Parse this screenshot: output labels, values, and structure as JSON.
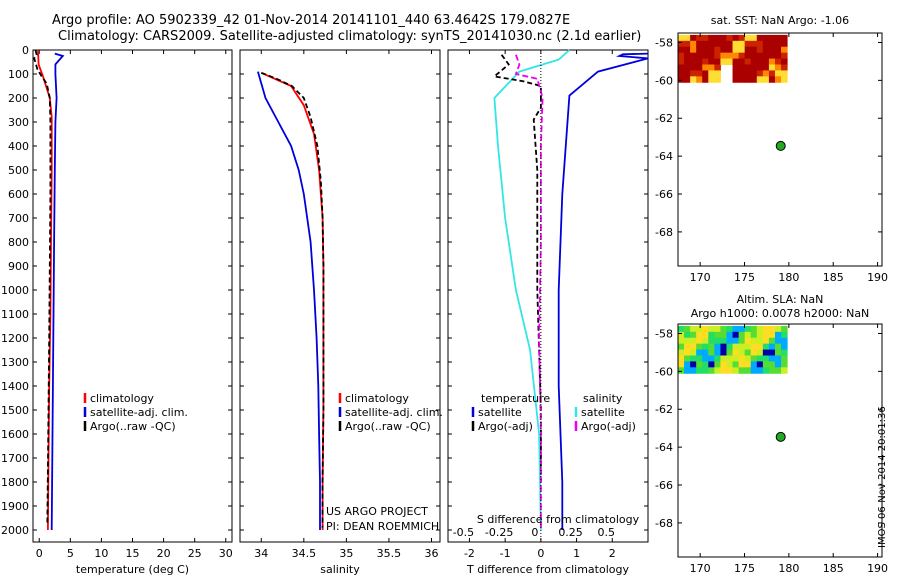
{
  "header": {
    "line1": "Argo profile: AO 5902339_42 01-Nov-2014 20141101_440 63.4642S 179.0827E",
    "line2": "Climatology: CARS2009. Satellite-adjusted climatology: synTS_20141030.nc (2.1d earlier)"
  },
  "footer_stamp": "IMOS 06-Nov-2014 20:01:36",
  "colors": {
    "red": "#ff0000",
    "blue": "#0000dd",
    "black": "#000000",
    "cyan": "#33e6e6",
    "magenta": "#ee00ee",
    "gray": "#555555"
  },
  "chart_data": [
    {
      "type": "line",
      "name": "temperature-profile",
      "xlabel": "temperature (deg C)",
      "xlim": [
        -1,
        31
      ],
      "ylim": [
        2050,
        0
      ],
      "xticks": [
        0,
        5,
        10,
        15,
        20,
        25,
        30
      ],
      "yticks": [
        0,
        100,
        200,
        300,
        400,
        500,
        600,
        700,
        800,
        900,
        1000,
        1100,
        1200,
        1300,
        1400,
        1500,
        1600,
        1700,
        1800,
        1900,
        2000
      ],
      "series": [
        {
          "name": "satellite-adj. clim.",
          "color": "blue",
          "dash": "",
          "points": [
            [
              2.5,
              15
            ],
            [
              3.8,
              25
            ],
            [
              2.6,
              60
            ],
            [
              2.6,
              100
            ],
            [
              2.8,
              200
            ],
            [
              2.6,
              300
            ],
            [
              2.5,
              500
            ],
            [
              2.4,
              800
            ],
            [
              2.3,
              1100
            ],
            [
              2.2,
              1400
            ],
            [
              2.1,
              1700
            ],
            [
              2.0,
              2000
            ]
          ]
        },
        {
          "name": "climatology",
          "color": "red",
          "dash": "",
          "points": [
            [
              -0.2,
              0
            ],
            [
              -0.1,
              60
            ],
            [
              0.6,
              110
            ],
            [
              1.7,
              200
            ],
            [
              2.0,
              280
            ],
            [
              2.0,
              500
            ],
            [
              1.9,
              800
            ],
            [
              1.8,
              1100
            ],
            [
              1.6,
              1400
            ],
            [
              1.5,
              1700
            ],
            [
              1.4,
              2000
            ]
          ]
        },
        {
          "name": "Argo(..raw -QC)",
          "color": "black",
          "dash": "5,3",
          "points": [
            [
              -0.6,
              0
            ],
            [
              -0.4,
              20
            ],
            [
              -0.8,
              35
            ],
            [
              -0.3,
              80
            ],
            [
              0.4,
              110
            ],
            [
              1.2,
              140
            ],
            [
              1.7,
              200
            ],
            [
              1.8,
              300
            ],
            [
              1.8,
              600
            ],
            [
              1.7,
              900
            ],
            [
              1.6,
              1200
            ],
            [
              1.5,
              1500
            ],
            [
              1.4,
              1750
            ],
            [
              1.3,
              1980
            ]
          ]
        }
      ],
      "legend": [
        "climatology",
        "satellite-adj. clim.",
        "Argo(..raw -QC)"
      ]
    },
    {
      "type": "line",
      "name": "salinity-profile",
      "xlabel": "salinity",
      "xlim": [
        33.75,
        36.1
      ],
      "ylim": [
        2050,
        0
      ],
      "xticks": [
        34,
        34.5,
        35,
        35.5,
        36
      ],
      "xticklabels": [
        "34",
        "34.5",
        "35",
        "35.5",
        "36"
      ],
      "series": [
        {
          "name": "satellite-adj. clim.",
          "color": "blue",
          "dash": "",
          "points": [
            [
              33.96,
              90
            ],
            [
              34.05,
              200
            ],
            [
              34.2,
              300
            ],
            [
              34.35,
              400
            ],
            [
              34.44,
              500
            ],
            [
              34.5,
              600
            ],
            [
              34.54,
              700
            ],
            [
              34.58,
              800
            ],
            [
              34.62,
              1000
            ],
            [
              34.65,
              1200
            ],
            [
              34.67,
              1400
            ],
            [
              34.68,
              1600
            ],
            [
              34.69,
              1800
            ],
            [
              34.69,
              2000
            ]
          ]
        },
        {
          "name": "climatology",
          "color": "red",
          "dash": "",
          "points": [
            [
              34.0,
              95
            ],
            [
              34.35,
              150
            ],
            [
              34.5,
              230
            ],
            [
              34.62,
              350
            ],
            [
              34.68,
              500
            ],
            [
              34.72,
              700
            ],
            [
              34.73,
              900
            ],
            [
              34.73,
              1200
            ],
            [
              34.73,
              1500
            ],
            [
              34.72,
              1800
            ],
            [
              34.72,
              2000
            ]
          ]
        },
        {
          "name": "Argo(..raw -QC)",
          "color": "black",
          "dash": "5,3",
          "points": [
            [
              34.0,
              95
            ],
            [
              34.18,
              120
            ],
            [
              34.36,
              150
            ],
            [
              34.5,
              200
            ],
            [
              34.58,
              280
            ],
            [
              34.66,
              400
            ],
            [
              34.7,
              550
            ],
            [
              34.72,
              700
            ],
            [
              34.73,
              900
            ],
            [
              34.73,
              1200
            ],
            [
              34.73,
              1500
            ],
            [
              34.72,
              1800
            ],
            [
              34.72,
              1990
            ]
          ]
        }
      ],
      "legend": [
        "climatology",
        "satellite-adj. clim.",
        "Argo(..raw -QC)"
      ],
      "annotation": [
        "US ARGO PROJECT",
        "PI: DEAN ROEMMICH"
      ]
    },
    {
      "type": "line",
      "name": "difference-profile",
      "xlabel": "T difference from climatology",
      "xlabel2": "S difference from climatology",
      "xlim": [
        -2.6,
        3.0
      ],
      "ylim": [
        2050,
        0
      ],
      "xticks": [
        -2,
        -1,
        0,
        1,
        2
      ],
      "xticklabels": [
        "-2",
        "-1",
        "0",
        "1",
        "2"
      ],
      "s_ticklabels": [
        "-0.5",
        "-0.25",
        "0",
        "0.25",
        "0.5"
      ],
      "series": [
        {
          "name": "temperature satellite",
          "color": "blue",
          "dash": "",
          "points": [
            [
              3.0,
              15
            ],
            [
              2.3,
              18
            ],
            [
              2.2,
              25
            ],
            [
              3.0,
              35
            ],
            [
              1.6,
              90
            ],
            [
              0.8,
              190
            ],
            [
              0.6,
              600
            ],
            [
              0.5,
              1000
            ],
            [
              0.5,
              1400
            ],
            [
              0.6,
              1800
            ],
            [
              0.6,
              2000
            ]
          ]
        },
        {
          "name": "salinity satellite",
          "color": "cyan",
          "dash": "",
          "points": [
            [
              0.8,
              0
            ],
            [
              0.5,
              40
            ],
            [
              -0.6,
              90
            ],
            [
              -1.3,
              200
            ],
            [
              -1.2,
              400
            ],
            [
              -1.0,
              700
            ],
            [
              -0.7,
              1000
            ],
            [
              -0.3,
              1250
            ],
            [
              -0.05,
              1600
            ],
            [
              0.0,
              2000
            ]
          ]
        },
        {
          "name": "temperature Argo(-adj)",
          "color": "black",
          "dash": "5,3",
          "points": [
            [
              -1.1,
              20
            ],
            [
              -0.9,
              60
            ],
            [
              -1.3,
              110
            ],
            [
              -0.5,
              130
            ],
            [
              0.0,
              150
            ],
            [
              0.0,
              240
            ],
            [
              -0.2,
              290
            ],
            [
              -0.1,
              500
            ],
            [
              -0.1,
              1000
            ],
            [
              0.0,
              1500
            ],
            [
              0.0,
              1800
            ]
          ]
        },
        {
          "name": "salinity Argo(-adj)",
          "color": "magenta",
          "dash": "6,3",
          "points": [
            [
              -0.7,
              20
            ],
            [
              -0.6,
              60
            ],
            [
              -0.7,
              100
            ],
            [
              -0.1,
              120
            ],
            [
              0.05,
              200
            ],
            [
              0.0,
              400
            ],
            [
              0.0,
              800
            ],
            [
              -0.05,
              1200
            ],
            [
              0.0,
              1600
            ],
            [
              0.0,
              2000
            ]
          ]
        }
      ],
      "legend_headers": [
        "temperature",
        "salinity"
      ],
      "legend": [
        "satellite",
        "Argo(-adj)",
        "satellite",
        "Argo(-adj)"
      ]
    },
    {
      "type": "heatmap",
      "name": "sst-map",
      "title": "sat. SST: NaN Argo: -1.06",
      "xlim": [
        167.5,
        190.5
      ],
      "ylim": [
        -69.8,
        -57.5
      ],
      "xticks": [
        170,
        175,
        180,
        185,
        190
      ],
      "yticks": [
        -58,
        -60,
        -62,
        -64,
        -66,
        -68
      ],
      "marker": [
        179.08,
        -63.46
      ],
      "patch": {
        "x": [
          167.5,
          179.8
        ],
        "y": [
          -60.1,
          -57.6
        ]
      }
    },
    {
      "type": "heatmap",
      "name": "sla-map",
      "title": "Altim. SLA: NaN",
      "subtitle": "Argo h1000: 0.0078 h2000: NaN",
      "xlim": [
        167.5,
        190.5
      ],
      "ylim": [
        -69.8,
        -57.5
      ],
      "xticks": [
        170,
        175,
        180,
        185,
        190
      ],
      "yticks": [
        -58,
        -60,
        -62,
        -64,
        -66,
        -68
      ],
      "marker": [
        179.08,
        -63.46
      ],
      "patch": {
        "x": [
          167.5,
          179.8
        ],
        "y": [
          -60.1,
          -57.6
        ]
      }
    }
  ]
}
